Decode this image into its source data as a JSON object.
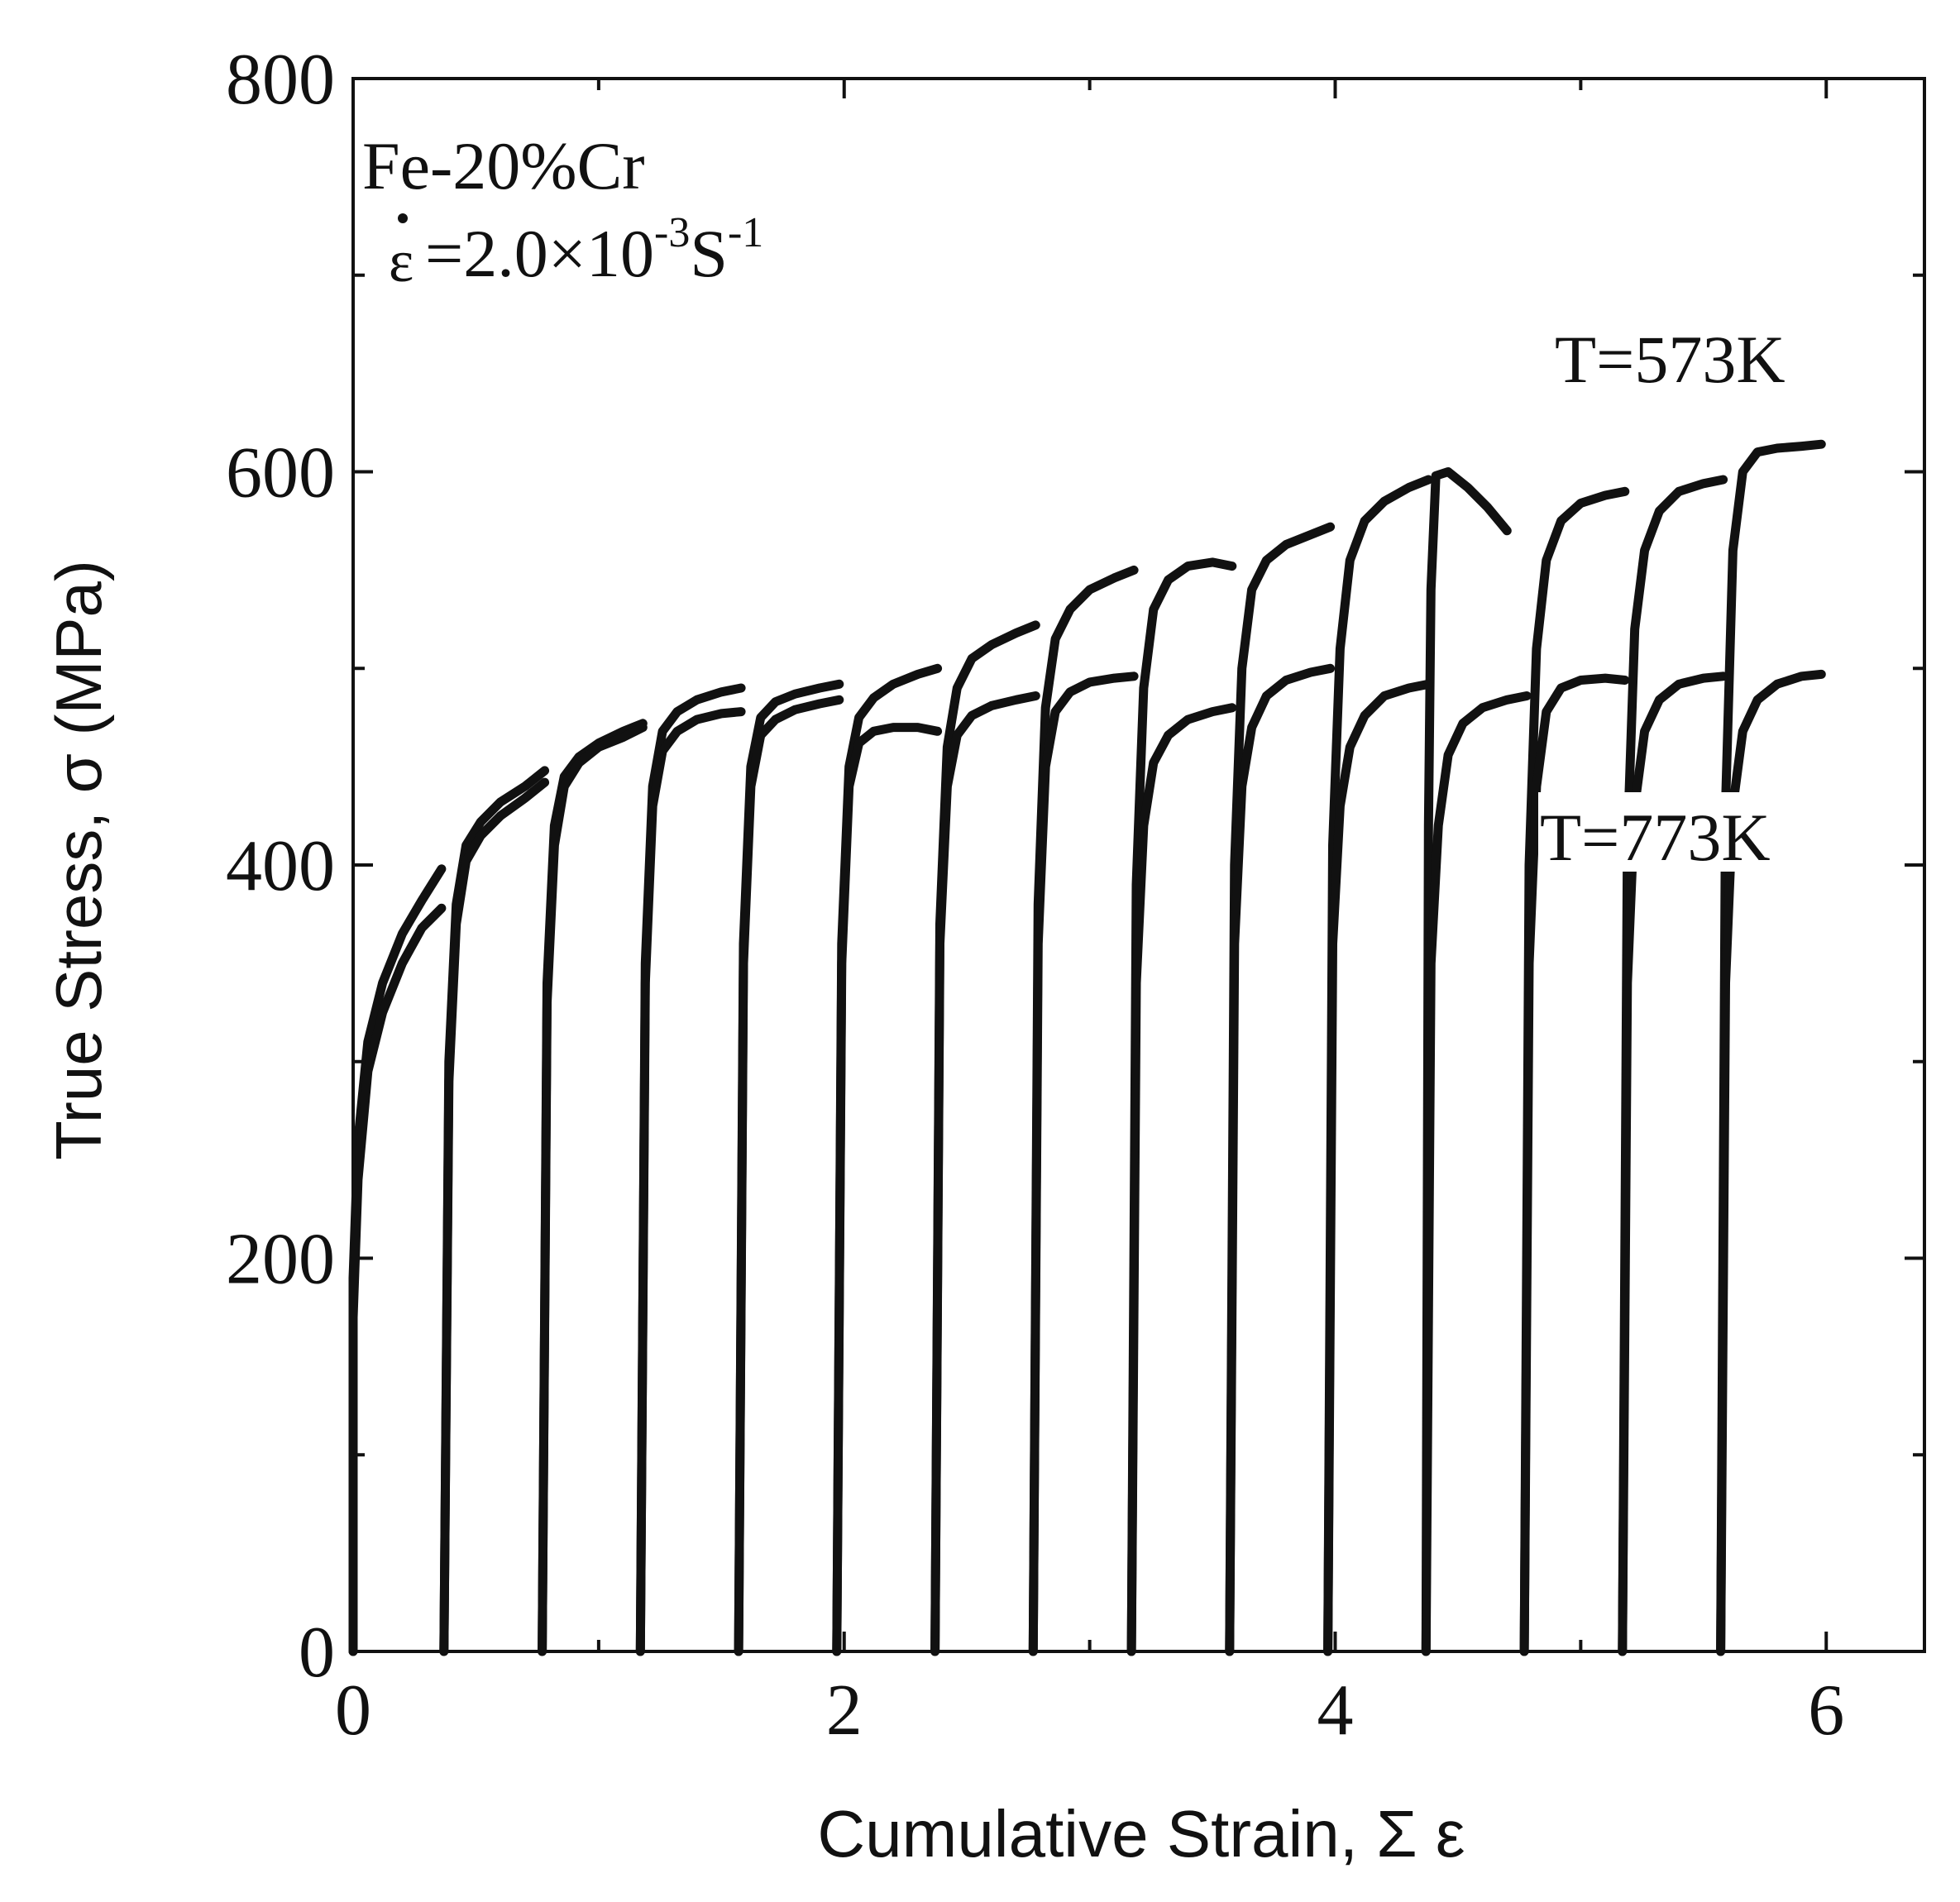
{
  "chart_data": {
    "type": "line",
    "title": "",
    "xlabel": "Cumulative Strain, Σ ε",
    "ylabel": "True Stress, σ (MPa)",
    "xlim": [
      0,
      6.4
    ],
    "ylim": [
      0,
      800
    ],
    "xticks": [
      0,
      2,
      4,
      6
    ],
    "yticks": [
      0,
      200,
      400,
      600,
      800
    ],
    "grid": false,
    "annotation": {
      "material": "Fe-20%Cr",
      "rate_symbol": "ε",
      "rate_text": " =2.0×10",
      "rate_exp1": "-3",
      "rate_unit": "S",
      "rate_exp2": "-1"
    },
    "series": [
      {
        "name": "T=573K",
        "cycles": [
          {
            "x": [
              0.0,
              0.0,
              0.02,
              0.06,
              0.12,
              0.2,
              0.28,
              0.36
            ],
            "y": [
              0,
              190,
              260,
              310,
              340,
              365,
              382,
              398
            ]
          },
          {
            "x": [
              0.37,
              0.39,
              0.42,
              0.46,
              0.52,
              0.6,
              0.7,
              0.78
            ],
            "y": [
              0,
              300,
              380,
              410,
              422,
              432,
              440,
              448
            ]
          },
          {
            "x": [
              0.77,
              0.79,
              0.82,
              0.86,
              0.92,
              1.0,
              1.1,
              1.18
            ],
            "y": [
              0,
              340,
              420,
              445,
              455,
              462,
              468,
              472
            ]
          },
          {
            "x": [
              1.17,
              1.19,
              1.22,
              1.26,
              1.32,
              1.4,
              1.5,
              1.58
            ],
            "y": [
              0,
              350,
              440,
              468,
              478,
              484,
              488,
              490
            ]
          },
          {
            "x": [
              1.57,
              1.59,
              1.62,
              1.66,
              1.72,
              1.8,
              1.9,
              1.98
            ],
            "y": [
              0,
              360,
              450,
              475,
              483,
              487,
              490,
              492
            ]
          },
          {
            "x": [
              1.97,
              1.99,
              2.02,
              2.06,
              2.12,
              2.2,
              2.3,
              2.38
            ],
            "y": [
              0,
              360,
              450,
              475,
              485,
              492,
              497,
              500
            ]
          },
          {
            "x": [
              2.37,
              2.39,
              2.42,
              2.46,
              2.52,
              2.6,
              2.7,
              2.78
            ],
            "y": [
              0,
              370,
              460,
              490,
              505,
              512,
              518,
              522
            ]
          },
          {
            "x": [
              2.77,
              2.79,
              2.82,
              2.86,
              2.92,
              3.0,
              3.1,
              3.18
            ],
            "y": [
              0,
              380,
              480,
              515,
              530,
              540,
              546,
              550
            ]
          },
          {
            "x": [
              3.17,
              3.19,
              3.22,
              3.26,
              3.32,
              3.4,
              3.5,
              3.58
            ],
            "y": [
              0,
              390,
              490,
              530,
              545,
              552,
              554,
              552
            ]
          },
          {
            "x": [
              3.57,
              3.59,
              3.62,
              3.66,
              3.72,
              3.8,
              3.9,
              3.98
            ],
            "y": [
              0,
              400,
              500,
              540,
              555,
              563,
              568,
              572
            ]
          },
          {
            "x": [
              3.97,
              3.99,
              4.02,
              4.06,
              4.12,
              4.2,
              4.3,
              4.38
            ],
            "y": [
              0,
              410,
              510,
              555,
              575,
              585,
              592,
              596
            ]
          },
          {
            "x": [
              4.37,
              4.38,
              4.39,
              4.41,
              4.46,
              4.54,
              4.62,
              4.7
            ],
            "y": [
              0,
              420,
              540,
              598,
              600,
              592,
              582,
              570
            ]
          },
          {
            "x": [
              4.77,
              4.79,
              4.82,
              4.86,
              4.92,
              5.0,
              5.1,
              5.18
            ],
            "y": [
              0,
              400,
              510,
              555,
              575,
              584,
              588,
              590
            ]
          },
          {
            "x": [
              5.17,
              5.19,
              5.22,
              5.26,
              5.32,
              5.4,
              5.5,
              5.58
            ],
            "y": [
              0,
              410,
              520,
              560,
              580,
              590,
              594,
              596
            ]
          },
          {
            "x": [
              5.57,
              5.59,
              5.62,
              5.66,
              5.72,
              5.8,
              5.9,
              5.98
            ],
            "y": [
              0,
              430,
              560,
              600,
              610,
              612,
              613,
              614
            ]
          }
        ]
      },
      {
        "name": "T=773K",
        "cycles": [
          {
            "x": [
              0.0,
              0.0,
              0.02,
              0.06,
              0.12,
              0.2,
              0.28,
              0.36
            ],
            "y": [
              0,
              170,
              240,
              295,
              325,
              350,
              368,
              378
            ]
          },
          {
            "x": [
              0.37,
              0.39,
              0.42,
              0.46,
              0.52,
              0.6,
              0.7,
              0.78
            ],
            "y": [
              0,
              290,
              370,
              402,
              415,
              425,
              434,
              442
            ]
          },
          {
            "x": [
              0.77,
              0.79,
              0.82,
              0.86,
              0.92,
              1.0,
              1.1,
              1.18
            ],
            "y": [
              0,
              330,
              410,
              440,
              452,
              460,
              465,
              470
            ]
          },
          {
            "x": [
              1.17,
              1.19,
              1.22,
              1.26,
              1.32,
              1.4,
              1.5,
              1.58
            ],
            "y": [
              0,
              340,
              430,
              458,
              468,
              474,
              477,
              478
            ]
          },
          {
            "x": [
              1.57,
              1.59,
              1.62,
              1.66,
              1.72,
              1.8,
              1.9,
              1.98
            ],
            "y": [
              0,
              350,
              440,
              466,
              474,
              479,
              482,
              484
            ]
          },
          {
            "x": [
              1.97,
              1.99,
              2.02,
              2.06,
              2.12,
              2.2,
              2.3,
              2.38
            ],
            "y": [
              0,
              350,
              440,
              462,
              468,
              470,
              470,
              468
            ]
          },
          {
            "x": [
              2.37,
              2.39,
              2.42,
              2.46,
              2.52,
              2.6,
              2.7,
              2.78
            ],
            "y": [
              0,
              360,
              440,
              466,
              476,
              481,
              484,
              486
            ]
          },
          {
            "x": [
              2.77,
              2.79,
              2.82,
              2.86,
              2.92,
              3.0,
              3.1,
              3.18
            ],
            "y": [
              0,
              360,
              450,
              478,
              488,
              493,
              495,
              496
            ]
          },
          {
            "x": [
              3.17,
              3.19,
              3.22,
              3.26,
              3.32,
              3.4,
              3.5,
              3.58
            ],
            "y": [
              0,
              340,
              420,
              452,
              466,
              474,
              478,
              480
            ]
          },
          {
            "x": [
              3.57,
              3.59,
              3.62,
              3.66,
              3.72,
              3.8,
              3.9,
              3.98
            ],
            "y": [
              0,
              360,
              440,
              470,
              486,
              494,
              498,
              500
            ]
          },
          {
            "x": [
              3.97,
              3.99,
              4.02,
              4.06,
              4.12,
              4.2,
              4.3,
              4.38
            ],
            "y": [
              0,
              360,
              430,
              460,
              476,
              486,
              490,
              492
            ]
          },
          {
            "x": [
              4.37,
              4.39,
              4.42,
              4.46,
              4.52,
              4.6,
              4.7,
              4.78
            ],
            "y": [
              0,
              350,
              420,
              456,
              472,
              480,
              484,
              486
            ]
          },
          {
            "x": [
              4.77,
              4.79,
              4.82,
              4.86,
              4.92,
              5.0,
              5.1,
              5.18
            ],
            "y": [
              0,
              350,
              440,
              478,
              490,
              494,
              495,
              494
            ]
          },
          {
            "x": [
              5.17,
              5.19,
              5.22,
              5.26,
              5.32,
              5.4,
              5.5,
              5.58
            ],
            "y": [
              0,
              340,
              430,
              468,
              484,
              492,
              495,
              496
            ]
          },
          {
            "x": [
              5.57,
              5.59,
              5.62,
              5.66,
              5.72,
              5.8,
              5.9,
              5.98
            ],
            "y": [
              0,
              340,
              430,
              468,
              484,
              492,
              496,
              497
            ]
          }
        ]
      }
    ]
  }
}
